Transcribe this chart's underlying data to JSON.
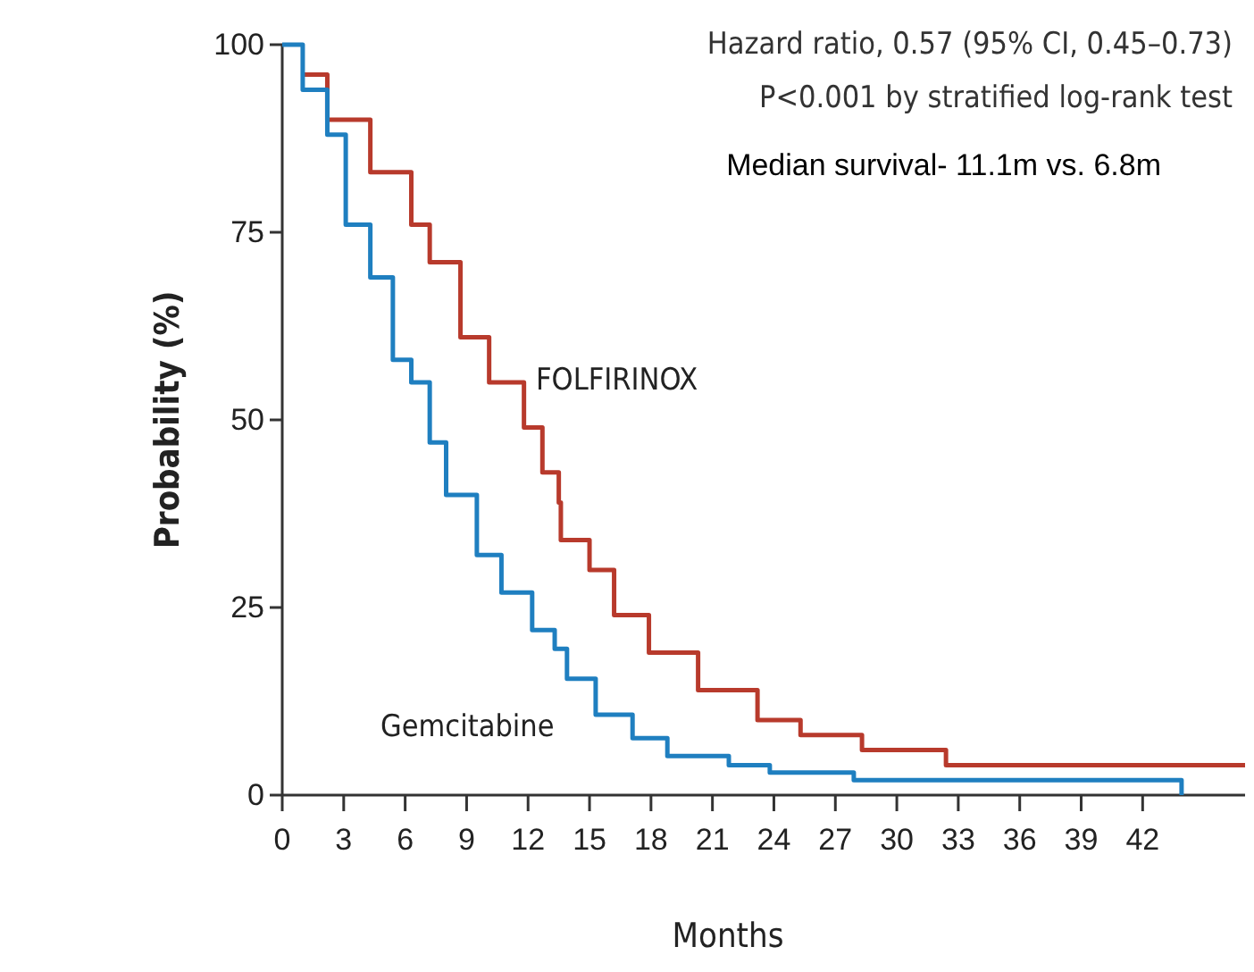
{
  "chart_data": {
    "type": "step",
    "xlabel": "Months",
    "ylabel": "Probability (%)",
    "xlim": [
      0,
      47
    ],
    "ylim": [
      0,
      100
    ],
    "xticks": [
      0,
      3,
      6,
      9,
      12,
      15,
      18,
      21,
      24,
      27,
      30,
      33,
      36,
      39,
      42
    ],
    "yticks": [
      0,
      25,
      50,
      75,
      100
    ],
    "grid": false,
    "annotations": [
      "Hazard ratio, 0.57 (95% CI, 0.45–0.73)",
      "P<0.001 by stratified log-rank test",
      "Median survival- 11.1m vs. 6.8m"
    ],
    "series": [
      {
        "name": "FOLFIRINOX",
        "color": "#b83a2c",
        "x": [
          1,
          2.2,
          4.3,
          6.3,
          7.2,
          8.7,
          10.1,
          11.8,
          12.7,
          13.5,
          13.6,
          15,
          16.2,
          17.9,
          20.3,
          22.2,
          23.2,
          25.3,
          28.3,
          32.4,
          47
        ],
        "values": [
          96,
          90,
          83,
          76,
          71,
          61,
          55,
          49,
          43,
          39,
          34,
          30,
          24,
          19,
          14,
          14,
          10,
          8,
          6,
          4,
          4
        ]
      },
      {
        "name": "Gemcitabine",
        "color": "#1f7fc0",
        "x": [
          0,
          1,
          2.2,
          3.1,
          4.3,
          5.4,
          6.3,
          7.2,
          8,
          9.5,
          10.7,
          12.2,
          13.3,
          13.9,
          15.3,
          17.1,
          18.8,
          21.8,
          23.8,
          27.9,
          43.9
        ],
        "values": [
          100,
          94,
          88,
          76,
          69,
          58,
          55,
          47,
          40,
          32,
          27,
          22,
          19.5,
          15.5,
          10.7,
          7.6,
          5.2,
          4,
          3,
          2,
          0
        ]
      }
    ]
  }
}
